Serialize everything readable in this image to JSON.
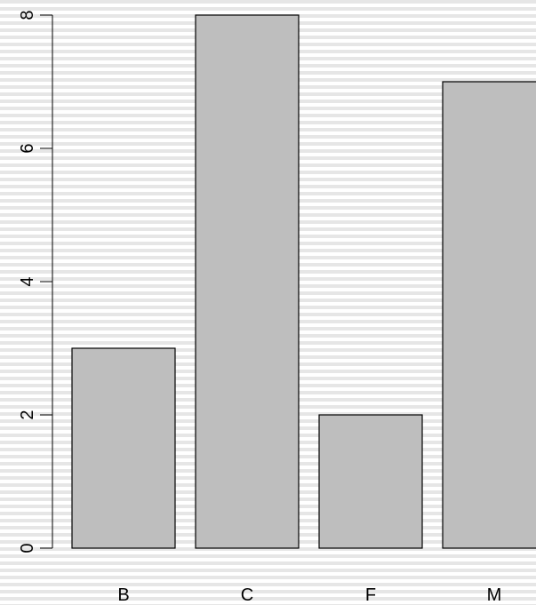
{
  "chart_data": {
    "type": "bar",
    "categories": [
      "B",
      "C",
      "F",
      "M"
    ],
    "values": [
      3,
      8,
      2,
      7
    ],
    "ylim": [
      0,
      8
    ],
    "yticks": [
      "0",
      "2",
      "4",
      "6",
      "8"
    ],
    "title": "",
    "xlabel": "",
    "ylabel": "",
    "grid": false,
    "bar_color": "#bebebe",
    "stroke_color": "#000000",
    "background": "horizontal-stripes"
  }
}
